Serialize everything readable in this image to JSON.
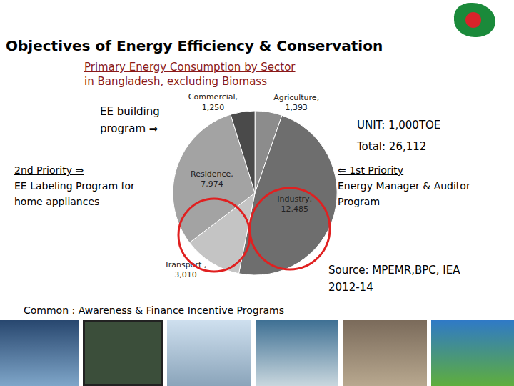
{
  "chart_data": {
    "type": "pie",
    "categories": [
      "Agriculture,",
      "Industry,",
      "Transport ,",
      "Residence,",
      "Commercial,"
    ],
    "values": [
      1393,
      12485,
      3010,
      7974,
      1250
    ],
    "value_labels": [
      "1,393",
      "12,485",
      "3,010",
      "7,974",
      "1,250"
    ],
    "colors": [
      "#8c8c8c",
      "#6e6e6e",
      "#c4c4c4",
      "#a3a3a3",
      "#4a4a4a"
    ],
    "data_labels": true
  },
  "page": {
    "title": "Objectives of Energy Efficiency & Conservation",
    "subtitle": [
      "Primary Energy Consumption by Sector",
      "in Bangladesh, excluding Biomass"
    ],
    "ee_building": "EE building program ⇒",
    "second_priority": [
      "2nd Priority ⇒",
      "EE Labeling Program for",
      "home appliances"
    ],
    "unit": [
      "UNIT: 1,000TOE",
      "Total: 26,112"
    ],
    "first_priority": [
      "⇐ 1st Priority",
      "Energy Manager &  Auditor",
      "Program"
    ],
    "source": [
      "Source: MPEMR,BPC, IEA",
      "2012-14"
    ],
    "common": "Common : Awareness & Finance Incentive Programs"
  }
}
